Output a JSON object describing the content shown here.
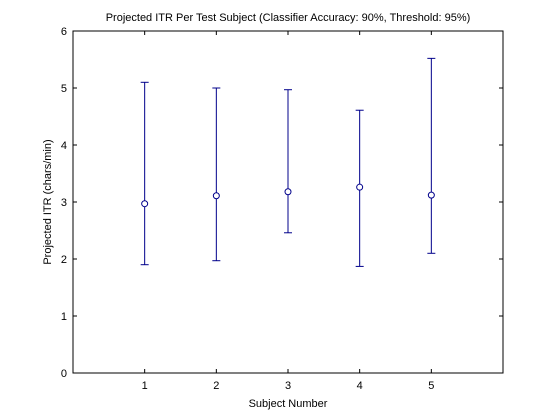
{
  "chart_data": {
    "type": "scatter",
    "title": "Projected ITR Per Test Subject (Classifier Accuracy: 90%, Threshold: 95%)",
    "xlabel": "Subject Number",
    "ylabel": "Projected ITR (chars/min)",
    "xlim": [
      0,
      6
    ],
    "ylim": [
      0,
      6
    ],
    "xticks": [
      1,
      2,
      3,
      4,
      5
    ],
    "yticks": [
      0,
      1,
      2,
      3,
      4,
      5,
      6
    ],
    "grid": false,
    "series_color": "#00008B",
    "points": [
      {
        "x": 1,
        "y": 2.97,
        "low": 1.9,
        "high": 5.1
      },
      {
        "x": 2,
        "y": 3.11,
        "low": 1.97,
        "high": 5.0
      },
      {
        "x": 3,
        "y": 3.18,
        "low": 2.46,
        "high": 4.97
      },
      {
        "x": 4,
        "y": 3.26,
        "low": 1.87,
        "high": 4.61
      },
      {
        "x": 5,
        "y": 3.12,
        "low": 2.1,
        "high": 5.52
      }
    ]
  }
}
